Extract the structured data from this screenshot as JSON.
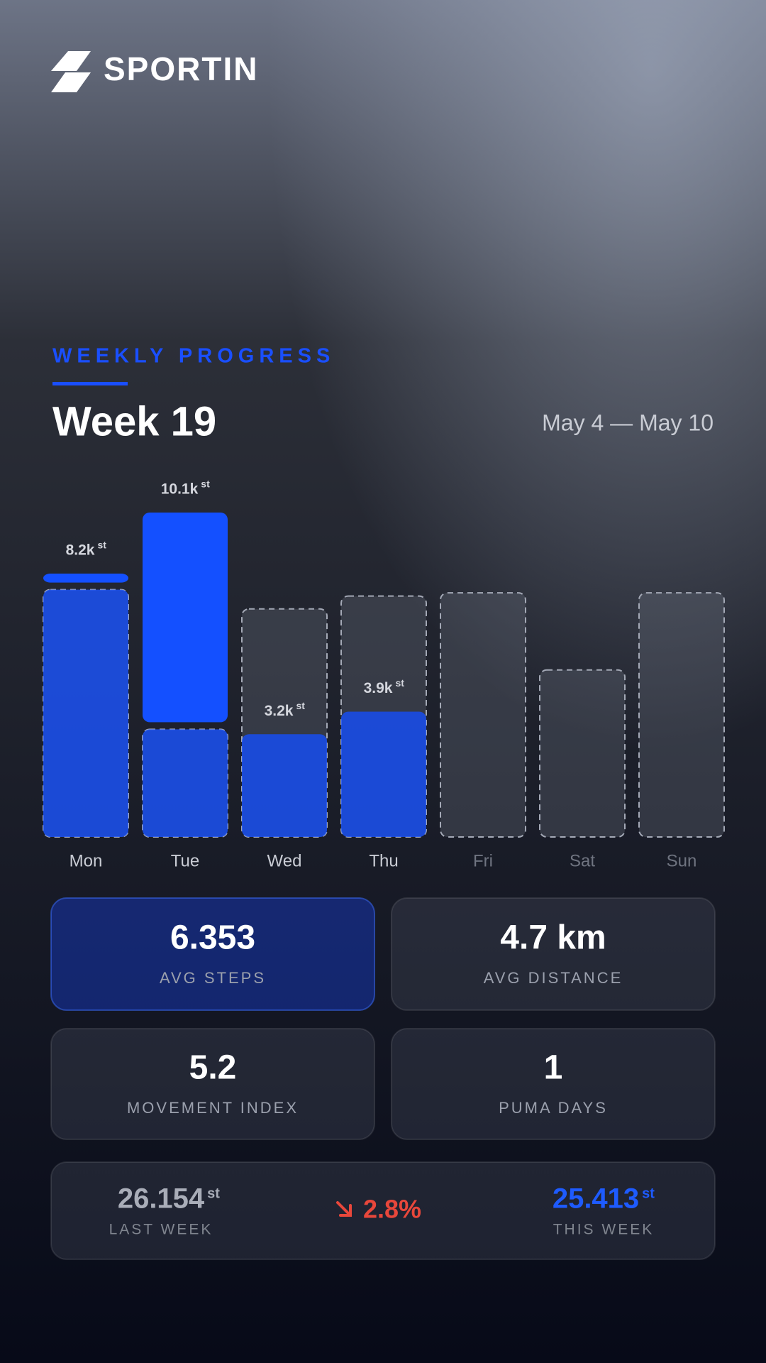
{
  "logo": "SPORTIN",
  "header": {
    "eyebrow": "WEEKLY PROGRESS",
    "title": "Week 19",
    "date_range": "May 4 — May 10"
  },
  "chart_data": {
    "type": "bar",
    "categories": [
      "Mon",
      "Tue",
      "Wed",
      "Thu",
      "Fri",
      "Sat",
      "Sun"
    ],
    "unit": "st",
    "series": [
      {
        "values": [
          8200,
          10100,
          3200,
          3900,
          null,
          null,
          null
        ],
        "value_labels": [
          "8.2k",
          "10.1k",
          "3.2k",
          "3.9k",
          null,
          null,
          null
        ],
        "color": "#1450ff"
      },
      {
        "values": [
          7700,
          3350,
          7100,
          7500,
          7600,
          5200,
          7600
        ],
        "color": "#a4a9b6"
      }
    ]
  },
  "stats": [
    {
      "value": "6.353",
      "label": "AVG STEPS"
    },
    {
      "value": "4.7 km",
      "label": "AVG DISTANCE"
    },
    {
      "value": "5.2",
      "label": "MOVEMENT INDEX"
    },
    {
      "value": "1",
      "label": "PUMA DAYS"
    }
  ],
  "comparison": {
    "last_week": {
      "value": "26.154",
      "unit": "st",
      "label": "LAST WEEK"
    },
    "change": "2.8%",
    "this_week": {
      "value": "25.413",
      "unit": "st",
      "label": "THIS WEEK"
    }
  }
}
